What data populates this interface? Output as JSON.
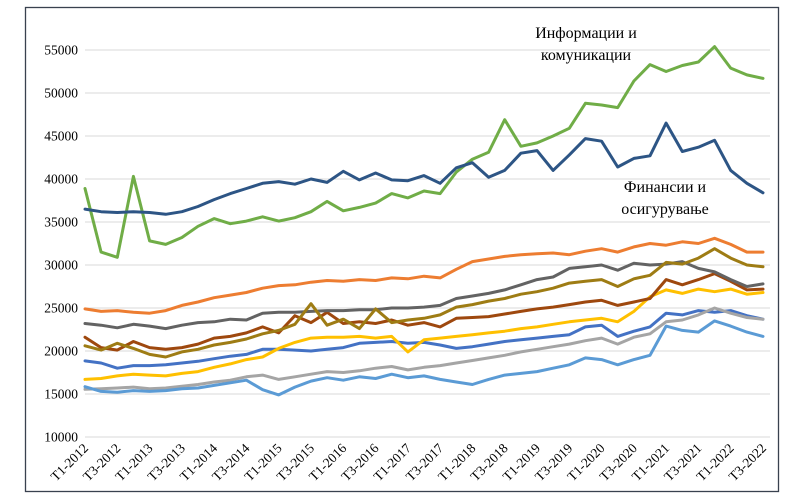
{
  "figure": {
    "background": "#ffffff",
    "frame_border_color": "#39414F",
    "gridline_color": "#D9D9D9",
    "text_color": "#000000"
  },
  "chart_data": {
    "type": "line",
    "title": "",
    "xlabel": "",
    "ylabel": "",
    "ylim": [
      10000,
      55000
    ],
    "y_tick_step": 5000,
    "grid": "horizontal",
    "legend_position": "none",
    "y_axis": {
      "tick_labels": [
        "10000",
        "15000",
        "20000",
        "25000",
        "30000",
        "35000",
        "40000",
        "45000",
        "50000",
        "55000"
      ]
    },
    "x_axis": {
      "tick_labels_shown": [
        "T1-2012",
        "T3-2012",
        "T1-2013",
        "T3-2013",
        "T1-2014",
        "T3-2014",
        "T1-2015",
        "T3-2015",
        "T1-2016",
        "T3-2016",
        "T1-2017",
        "T3-2017",
        "T1-2018",
        "T3-2018",
        "T1-2019",
        "T3-2019",
        "T1-2020",
        "T3-2020",
        "T1-2021",
        "T3-2021",
        "T1-2022",
        "T3-2022"
      ],
      "shown_every_n_points": 2,
      "all_points": [
        "T1-2012",
        "T2-2012",
        "T3-2012",
        "T4-2012",
        "T1-2013",
        "T2-2013",
        "T3-2013",
        "T4-2013",
        "T1-2014",
        "T2-2014",
        "T3-2014",
        "T4-2014",
        "T1-2015",
        "T2-2015",
        "T3-2015",
        "T4-2015",
        "T1-2016",
        "T2-2016",
        "T3-2016",
        "T4-2016",
        "T1-2017",
        "T2-2017",
        "T3-2017",
        "T4-2017",
        "T1-2018",
        "T2-2018",
        "T3-2018",
        "T4-2018",
        "T1-2019",
        "T2-2019",
        "T3-2019",
        "T4-2019",
        "T1-2020",
        "T2-2020",
        "T3-2020",
        "T4-2020",
        "T1-2021",
        "T2-2021",
        "T3-2021",
        "T4-2021",
        "T1-2022",
        "T2-2022",
        "T3-2022"
      ]
    },
    "annotations": [
      {
        "series_key": "green",
        "lines": [
          "Информации и",
          "комуникации"
        ]
      },
      {
        "series_key": "navy",
        "lines": [
          "Финансии и",
          "осигурување"
        ]
      }
    ],
    "series": [
      {
        "key": "blue",
        "name": "",
        "color": "#4472C4",
        "values": [
          18850,
          18600,
          18000,
          18300,
          18300,
          18400,
          18600,
          18800,
          19100,
          19400,
          19600,
          20200,
          20200,
          20100,
          20000,
          20200,
          20400,
          20900,
          21000,
          21100,
          20900,
          21000,
          20700,
          20300,
          20500,
          20800,
          21100,
          21300,
          21500,
          21700,
          21900,
          22800,
          23000,
          21700,
          22300,
          22800,
          24400,
          24200,
          24700,
          24500,
          24700,
          24100,
          23700
        ]
      },
      {
        "key": "orange",
        "name": "",
        "color": "#ED7D31",
        "values": [
          24900,
          24600,
          24700,
          24500,
          24400,
          24700,
          25300,
          25700,
          26200,
          26500,
          26800,
          27300,
          27600,
          27700,
          28000,
          28200,
          28100,
          28300,
          28200,
          28500,
          28400,
          28700,
          28500,
          29500,
          30400,
          30700,
          31000,
          31200,
          31300,
          31400,
          31200,
          31600,
          31900,
          31500,
          32100,
          32500,
          32300,
          32700,
          32500,
          33100,
          32400,
          31500,
          31500
        ]
      },
      {
        "key": "gray",
        "name": "",
        "color": "#A5A5A5",
        "values": [
          15550,
          15600,
          15700,
          15800,
          15600,
          15700,
          15900,
          16100,
          16400,
          16600,
          17000,
          17200,
          16700,
          17000,
          17300,
          17600,
          17500,
          17700,
          18000,
          18200,
          17800,
          18100,
          18300,
          18600,
          18900,
          19200,
          19500,
          19900,
          20200,
          20500,
          20800,
          21200,
          21500,
          20800,
          21600,
          22000,
          23400,
          23600,
          24200,
          25000,
          24400,
          23900,
          23700
        ]
      },
      {
        "key": "yellow",
        "name": "",
        "color": "#FFC000",
        "values": [
          16700,
          16800,
          17100,
          17300,
          17200,
          17100,
          17400,
          17600,
          18100,
          18500,
          19000,
          19300,
          20300,
          21000,
          21500,
          21600,
          21600,
          21700,
          21500,
          21700,
          19900,
          21300,
          21500,
          21700,
          21900,
          22100,
          22300,
          22600,
          22800,
          23100,
          23400,
          23600,
          23800,
          23400,
          24600,
          26300,
          27100,
          26700,
          27200,
          26900,
          27200,
          26600,
          26800
        ]
      },
      {
        "key": "lightblue",
        "name": "",
        "color": "#5B9BD5",
        "values": [
          15850,
          15300,
          15200,
          15400,
          15300,
          15400,
          15600,
          15700,
          16000,
          16300,
          16600,
          15500,
          14900,
          15800,
          16500,
          16900,
          16600,
          17000,
          16800,
          17300,
          16900,
          17100,
          16700,
          16400,
          16100,
          16700,
          17200,
          17400,
          17600,
          18000,
          18400,
          19200,
          19000,
          18400,
          19000,
          19500,
          22900,
          22400,
          22200,
          23500,
          22900,
          22200,
          21700
        ]
      },
      {
        "key": "green",
        "name": "Информации и комуникации",
        "color": "#70AD47",
        "values": [
          38900,
          31500,
          30900,
          40300,
          32800,
          32400,
          33200,
          34500,
          35400,
          34800,
          35100,
          35600,
          35100,
          35500,
          36200,
          37400,
          36300,
          36700,
          37200,
          38300,
          37800,
          38600,
          38300,
          40800,
          42300,
          43100,
          46900,
          43800,
          44200,
          45000,
          45900,
          48800,
          48600,
          48300,
          51400,
          53300,
          52500,
          53200,
          53600,
          55400,
          52900,
          52100,
          51700
        ]
      },
      {
        "key": "navy",
        "name": "Финансии и осигурување",
        "color": "#2D5585",
        "values": [
          36500,
          36200,
          36100,
          36200,
          36100,
          35900,
          36200,
          36800,
          37600,
          38300,
          38900,
          39500,
          39700,
          39400,
          40000,
          39600,
          40900,
          39900,
          40700,
          39900,
          39800,
          40400,
          39500,
          41300,
          41900,
          40200,
          41000,
          43000,
          43300,
          41000,
          42800,
          44700,
          44400,
          41400,
          42400,
          42700,
          46500,
          43200,
          43700,
          44500,
          41000,
          39500,
          38400
        ]
      },
      {
        "key": "brown",
        "name": "",
        "color": "#9E480E",
        "values": [
          21600,
          20400,
          20100,
          21100,
          20400,
          20200,
          20400,
          20800,
          21500,
          21700,
          22100,
          22800,
          22100,
          24100,
          23300,
          24500,
          23200,
          23400,
          23200,
          23600,
          23000,
          23300,
          22800,
          23800,
          23900,
          24000,
          24300,
          24600,
          24900,
          25100,
          25400,
          25700,
          25900,
          25300,
          25700,
          26100,
          28300,
          27700,
          28300,
          29000,
          28100,
          27100,
          27200
        ]
      },
      {
        "key": "darkgray",
        "name": "",
        "color": "#636363",
        "values": [
          23200,
          23000,
          22700,
          23100,
          22900,
          22600,
          23000,
          23300,
          23400,
          23700,
          23600,
          24400,
          24500,
          24500,
          24600,
          24700,
          24700,
          24800,
          24800,
          25000,
          25000,
          25100,
          25300,
          26100,
          26400,
          26700,
          27100,
          27700,
          28300,
          28600,
          29600,
          29800,
          30000,
          29400,
          30200,
          30000,
          30100,
          30400,
          29600,
          29200,
          28300,
          27500,
          27800
        ]
      },
      {
        "key": "olive",
        "name": "",
        "color": "#9E7C14",
        "values": [
          20600,
          20100,
          20900,
          20300,
          19600,
          19300,
          19900,
          20200,
          20700,
          21000,
          21400,
          22000,
          22400,
          23100,
          25500,
          23000,
          23700,
          22600,
          24900,
          23300,
          23600,
          23800,
          24200,
          25100,
          25400,
          25800,
          26100,
          26600,
          26900,
          27300,
          27900,
          28100,
          28300,
          27500,
          28400,
          28800,
          30300,
          30100,
          30800,
          31900,
          30800,
          30000,
          29800
        ]
      }
    ]
  }
}
